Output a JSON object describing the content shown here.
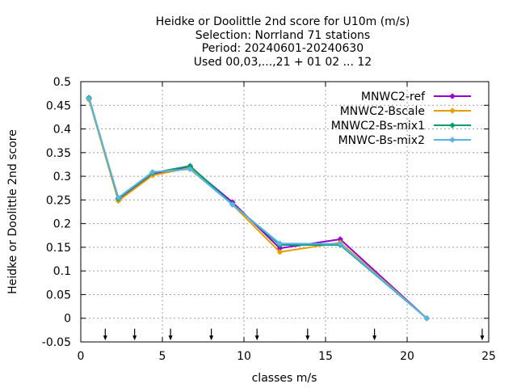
{
  "chart_data": {
    "type": "line",
    "title_lines": [
      "Heidke or Doolittle 2nd score  for U10m (m/s)",
      "Selection: Norrland     71 stations",
      "Period: 20240601-20240630",
      "Used 00,03,...,21 + 01 02 ... 12"
    ],
    "xlabel": "classes m/s",
    "ylabel": "Heidke or Doolittle 2nd score",
    "xlim": [
      0,
      25
    ],
    "ylim": [
      -0.05,
      0.5
    ],
    "x_ticks": [
      0,
      5,
      10,
      15,
      20,
      25
    ],
    "y_ticks": [
      -0.05,
      0,
      0.05,
      0.1,
      0.15,
      0.2,
      0.25,
      0.3,
      0.35,
      0.4,
      0.45,
      0.5
    ],
    "grid": true,
    "legend_position": "top-right",
    "class_marker_x": [
      1.5,
      3.3,
      5.5,
      8.0,
      10.8,
      13.9,
      18.0,
      24.6
    ],
    "series": [
      {
        "name": "MNWC2-ref",
        "color": "#9400d3",
        "x": [
          0.5,
          2.3,
          4.4,
          6.7,
          9.3,
          12.2,
          15.9,
          21.2
        ],
        "y": [
          0.465,
          0.252,
          0.305,
          0.32,
          0.245,
          0.148,
          0.167,
          0.0
        ]
      },
      {
        "name": "MNWC2-Bscale",
        "color": "#e69f00",
        "x": [
          0.5,
          2.3,
          4.4,
          6.7,
          9.3,
          12.2,
          15.9,
          21.2
        ],
        "y": [
          0.462,
          0.248,
          0.302,
          0.318,
          0.24,
          0.14,
          0.16,
          0.0
        ]
      },
      {
        "name": "MNWC2-Bs-mix1",
        "color": "#009e73",
        "x": [
          0.5,
          2.3,
          4.4,
          6.7,
          9.3,
          12.2,
          15.9,
          21.2
        ],
        "y": [
          0.466,
          0.253,
          0.307,
          0.322,
          0.241,
          0.155,
          0.155,
          0.0
        ]
      },
      {
        "name": "MNWC-Bs-mix2",
        "color": "#56b4e9",
        "x": [
          0.5,
          2.3,
          4.4,
          6.7,
          9.3,
          12.2,
          15.9,
          21.2
        ],
        "y": [
          0.464,
          0.255,
          0.309,
          0.315,
          0.24,
          0.158,
          0.157,
          0.0
        ]
      }
    ]
  }
}
